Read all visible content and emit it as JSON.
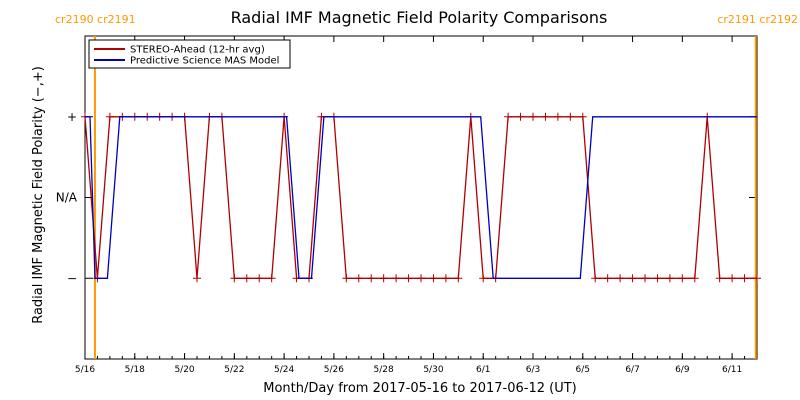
{
  "chart_data": {
    "type": "line",
    "title": "Radial IMF Magnetic Field Polarity Comparisons",
    "xlabel": "Month/Day from 2017-05-16 to 2017-06-12 (UT)",
    "ylabel": "Radial IMF Magnetic Field Polarity (−,+)",
    "xlim": [
      0,
      27.0
    ],
    "ylim": [
      -2,
      2
    ],
    "x_ticks": [
      {
        "x": 0,
        "label": "5/16"
      },
      {
        "x": 2,
        "label": "5/18"
      },
      {
        "x": 4,
        "label": "5/20"
      },
      {
        "x": 6,
        "label": "5/22"
      },
      {
        "x": 8,
        "label": "5/24"
      },
      {
        "x": 10,
        "label": "5/26"
      },
      {
        "x": 12,
        "label": "5/28"
      },
      {
        "x": 14,
        "label": "5/30"
      },
      {
        "x": 16,
        "label": "6/1"
      },
      {
        "x": 18,
        "label": "6/3"
      },
      {
        "x": 20,
        "label": "6/5"
      },
      {
        "x": 22,
        "label": "6/7"
      },
      {
        "x": 24,
        "label": "6/9"
      },
      {
        "x": 26,
        "label": "6/11"
      }
    ],
    "y_ticks": [
      {
        "y": 1,
        "label": "+"
      },
      {
        "y": 0,
        "label": "N/A"
      },
      {
        "y": -1,
        "label": "−"
      }
    ],
    "rotation_markers": [
      {
        "x": 0.4,
        "label": "cr2190 cr2191",
        "side": "left"
      },
      {
        "x": 26.95,
        "label": "cr2191 cr2192",
        "side": "right"
      }
    ],
    "marker_color": "#ff9900",
    "legend_position": "top-left",
    "series": [
      {
        "name": "STEREO-Ahead (12-hr avg)",
        "color": "#b00000",
        "markers": true,
        "x": [
          0.0,
          0.5,
          1.0,
          1.5,
          2.0,
          2.5,
          3.0,
          3.5,
          4.0,
          4.5,
          5.0,
          5.5,
          6.0,
          6.5,
          7.0,
          7.5,
          8.0,
          8.5,
          9.0,
          9.5,
          10.0,
          10.5,
          11.0,
          11.5,
          12.0,
          12.5,
          13.0,
          13.5,
          14.0,
          14.5,
          15.0,
          15.5,
          16.0,
          16.5,
          17.0,
          17.5,
          18.0,
          18.5,
          19.0,
          19.5,
          20.0,
          20.5,
          21.0,
          21.5,
          22.0,
          22.5,
          23.0,
          23.5,
          24.0,
          24.5,
          25.0,
          25.5,
          26.0,
          26.5,
          27.0
        ],
        "y": [
          1,
          -1,
          1,
          1,
          1,
          1,
          1,
          1,
          1,
          -1,
          1,
          1,
          -1,
          -1,
          -1,
          -1,
          1,
          -1,
          -1,
          1,
          1,
          -1,
          -1,
          -1,
          -1,
          -1,
          -1,
          -1,
          -1,
          -1,
          -1,
          1,
          -1,
          -1,
          1,
          1,
          1,
          1,
          1,
          1,
          1,
          -1,
          -1,
          -1,
          -1,
          -1,
          -1,
          -1,
          -1,
          -1,
          1,
          -1,
          -1,
          -1,
          -1
        ]
      },
      {
        "name": "Predictive Science MAS Model",
        "color": "#0000c0",
        "markers": false,
        "x": [
          0.0,
          0.2,
          0.4,
          0.9,
          1.4,
          8.1,
          8.6,
          9.1,
          9.6,
          15.9,
          16.4,
          19.9,
          20.4,
          27.0
        ],
        "y": [
          1,
          1,
          -1,
          -1,
          1,
          1,
          -1,
          -1,
          1,
          1,
          -1,
          -1,
          1,
          1
        ]
      }
    ],
    "mas_steps": [
      {
        "from": 0.0,
        "to": 0.2,
        "y": 1
      },
      {
        "from": 0.4,
        "to": 0.9,
        "y": -1
      }
    ]
  }
}
